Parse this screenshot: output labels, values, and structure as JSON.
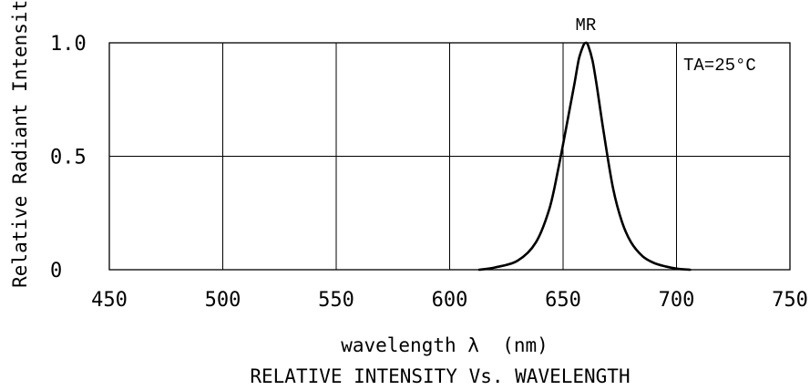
{
  "chart_data": {
    "type": "line",
    "title": "RELATIVE INTENSITY Vs. WAVELENGTH",
    "xlabel": "wavelength λ  (nm)",
    "ylabel": "Relative Radiant Intensity",
    "xlim": [
      450,
      750
    ],
    "ylim": [
      0,
      1.0
    ],
    "x_ticks": [
      450,
      500,
      550,
      600,
      650,
      700,
      750
    ],
    "y_ticks": [
      0,
      0.5,
      1.0
    ],
    "x_tick_labels": [
      "450",
      "500",
      "550",
      "600",
      "650",
      "700",
      "750"
    ],
    "y_tick_labels": [
      "0",
      "0.5",
      "1.0"
    ],
    "grid": true,
    "series": [
      {
        "name": "MR",
        "x": [
          613,
          620,
          630,
          638,
          644,
          648,
          652,
          655,
          657,
          659,
          660,
          661,
          663,
          665,
          668,
          672,
          676,
          680,
          685,
          690,
          695,
          700,
          706
        ],
        "y": [
          0.0,
          0.01,
          0.04,
          0.12,
          0.27,
          0.45,
          0.66,
          0.82,
          0.93,
          0.99,
          1.0,
          0.99,
          0.92,
          0.8,
          0.6,
          0.36,
          0.21,
          0.12,
          0.06,
          0.03,
          0.015,
          0.005,
          0.0
        ]
      }
    ],
    "annotations": [
      {
        "text": "MR",
        "x": 660,
        "y": 1.0
      },
      {
        "text": "TA=25°C"
      }
    ]
  }
}
